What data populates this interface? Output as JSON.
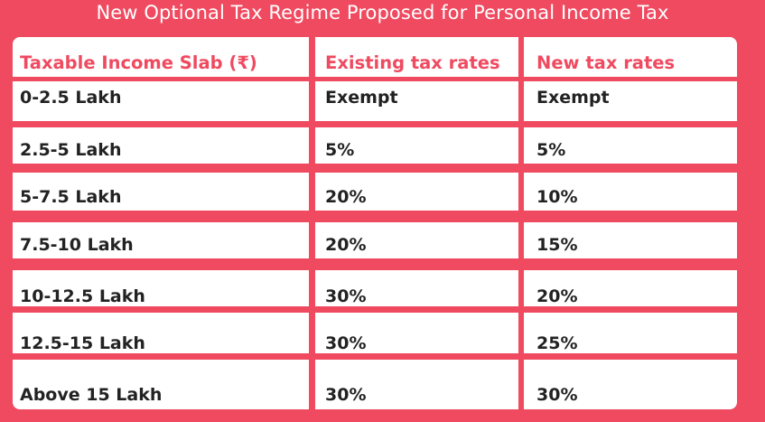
{
  "title": "New Optional Tax Regime Proposed for Personal Income Tax",
  "colors": {
    "background": "#ef4a60",
    "header_text": "#ef4a60",
    "cell_background": "#ffffff",
    "body_text": "#222222"
  },
  "table": {
    "headers": [
      "Taxable Income Slab (₹)",
      "Existing tax rates",
      "New tax rates"
    ],
    "rows": [
      [
        "0-2.5 Lakh",
        "Exempt",
        "Exempt"
      ],
      [
        "2.5-5 Lakh",
        "5%",
        "5%"
      ],
      [
        "5-7.5 Lakh",
        "20%",
        "10%"
      ],
      [
        "7.5-10 Lakh",
        "20%",
        "15%"
      ],
      [
        "10-12.5 Lakh",
        "30%",
        "20%"
      ],
      [
        "12.5-15 Lakh",
        "30%",
        "25%"
      ],
      [
        "Above 15 Lakh",
        "30%",
        "30%"
      ]
    ]
  }
}
